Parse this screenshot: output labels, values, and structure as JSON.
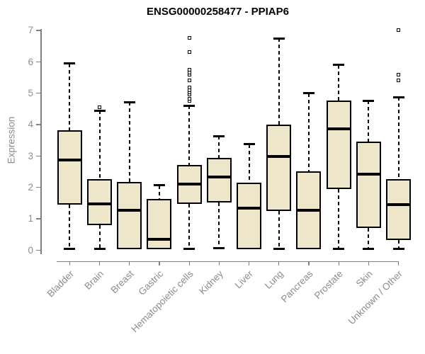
{
  "chart_data": {
    "type": "boxplot",
    "title": "ENSG00000258477 - PPIAP6",
    "ylabel": "Expression",
    "ylim": [
      0,
      7
    ],
    "yticks": [
      0,
      1,
      2,
      3,
      4,
      5,
      6,
      7
    ],
    "grid": false,
    "legend": null,
    "colors": {
      "box_fill": "#EDE6CB",
      "box_border": "#000000",
      "median": "#000000",
      "whisker": "#000000",
      "axis": "#808080",
      "tick_label": "#8c8c8c",
      "title": "#000000",
      "background": "#ffffff"
    },
    "categories": [
      "Bladder",
      "Brain",
      "Breast",
      "Gastric",
      "Hematopoietic cells",
      "Kidney",
      "Liver",
      "Lung",
      "Pancreas",
      "Prostate",
      "Skin",
      "Unknown / Other"
    ],
    "series": [
      {
        "category": "Bladder",
        "whisker_low": 0.05,
        "q1": 1.45,
        "median": 2.88,
        "q3": 3.82,
        "whisker_high": 5.95,
        "outliers": []
      },
      {
        "category": "Brain",
        "whisker_low": 0.05,
        "q1": 0.8,
        "median": 1.48,
        "q3": 2.27,
        "whisker_high": 4.45,
        "outliers": [
          4.55
        ]
      },
      {
        "category": "Breast",
        "whisker_low": 0.03,
        "q1": 0.03,
        "median": 1.28,
        "q3": 2.17,
        "whisker_high": 4.72,
        "outliers": []
      },
      {
        "category": "Gastric",
        "whisker_low": 0.03,
        "q1": 0.03,
        "median": 0.35,
        "q3": 1.62,
        "whisker_high": 2.07,
        "outliers": []
      },
      {
        "category": "Hematopoietic cells",
        "whisker_low": 0.05,
        "q1": 1.48,
        "median": 2.11,
        "q3": 2.71,
        "whisker_high": 4.6,
        "outliers": [
          4.75,
          4.82,
          4.95,
          5.02,
          5.1,
          5.18,
          5.4,
          5.58,
          5.66,
          5.74,
          6.32,
          6.76
        ]
      },
      {
        "category": "Kidney",
        "whisker_low": 0.06,
        "q1": 1.52,
        "median": 2.33,
        "q3": 2.93,
        "whisker_high": 3.63,
        "outliers": []
      },
      {
        "category": "Liver",
        "whisker_low": 0.03,
        "q1": 0.03,
        "median": 1.33,
        "q3": 2.15,
        "whisker_high": 3.37,
        "outliers": []
      },
      {
        "category": "Lung",
        "whisker_low": 0.05,
        "q1": 1.25,
        "median": 2.98,
        "q3": 4.0,
        "whisker_high": 6.75,
        "outliers": []
      },
      {
        "category": "Pancreas",
        "whisker_low": 0.03,
        "q1": 0.03,
        "median": 1.28,
        "q3": 2.5,
        "whisker_high": 5.0,
        "outliers": []
      },
      {
        "category": "Prostate",
        "whisker_low": 0.05,
        "q1": 1.94,
        "median": 3.87,
        "q3": 4.76,
        "whisker_high": 5.9,
        "outliers": []
      },
      {
        "category": "Skin",
        "whisker_low": 0.05,
        "q1": 0.7,
        "median": 2.41,
        "q3": 3.45,
        "whisker_high": 4.76,
        "outliers": []
      },
      {
        "category": "Unknown / Other",
        "whisker_low": 0.05,
        "q1": 0.32,
        "median": 1.44,
        "q3": 2.26,
        "whisker_high": 4.87,
        "outliers": [
          5.4,
          5.58,
          7.02
        ]
      }
    ]
  }
}
